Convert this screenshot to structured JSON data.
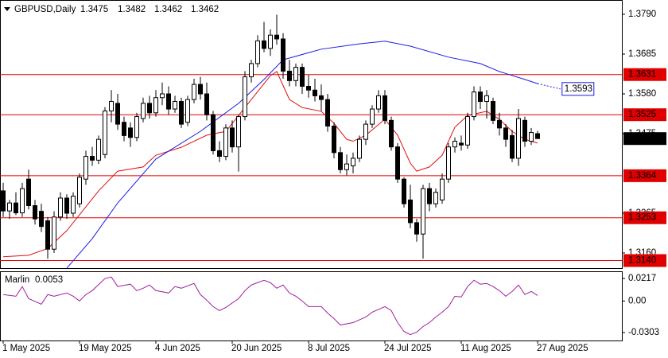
{
  "chart_data": {
    "type": "candlestick",
    "symbol": "GBPUSD,Daily",
    "categories": [
      "1 May 2025",
      null,
      null,
      null,
      null,
      null,
      null,
      null,
      null,
      null,
      null,
      null,
      "19 May 2025",
      null,
      null,
      null,
      null,
      null,
      null,
      null,
      null,
      null,
      null,
      null,
      "4 Jun 2025",
      null,
      null,
      null,
      null,
      null,
      null,
      null,
      null,
      null,
      null,
      null,
      "20 Jun 2025",
      null,
      null,
      null,
      null,
      null,
      null,
      null,
      null,
      null,
      null,
      null,
      "8 Jul 2025",
      null,
      null,
      null,
      null,
      null,
      null,
      null,
      null,
      null,
      null,
      null,
      "24 Jul 2025",
      null,
      null,
      null,
      null,
      null,
      null,
      null,
      null,
      null,
      null,
      null,
      "11 Aug 2025",
      null,
      null,
      null,
      null,
      null,
      null,
      null,
      null,
      null,
      null,
      null,
      "27 Aug 2025"
    ],
    "open": [
      1.3324,
      1.3271,
      1.3292,
      1.3266,
      1.3355,
      1.3285,
      1.327,
      1.3245,
      1.317,
      1.3255,
      1.3305,
      1.3265,
      1.329,
      1.3355,
      1.3415,
      1.3405,
      1.342,
      1.3535,
      1.3555,
      1.3505,
      1.349,
      1.3465,
      1.3515,
      1.3555,
      1.353,
      1.357,
      1.358,
      1.354,
      1.356,
      1.3505,
      1.3565,
      1.3605,
      1.358,
      1.3525,
      1.343,
      1.3415,
      1.349,
      1.344,
      1.352,
      1.3625,
      1.366,
      1.372,
      1.37,
      1.3735,
      1.3725,
      1.364,
      1.3615,
      1.365,
      1.36,
      1.359,
      1.3575,
      1.3565,
      1.3495,
      1.3425,
      1.338,
      1.339,
      1.341,
      1.346,
      1.35,
      1.354,
      1.3575,
      1.351,
      1.344,
      1.3355,
      1.33,
      1.324,
      1.321,
      1.333,
      1.329,
      1.33,
      1.3355,
      1.344,
      1.345,
      1.3445,
      1.352,
      1.3585,
      1.356,
      1.356,
      1.351,
      1.349,
      1.347,
      1.341,
      1.351,
      1.3455,
      1.3475
    ],
    "high": [
      1.3345,
      1.33,
      1.332,
      1.3345,
      1.338,
      1.33,
      1.329,
      1.3255,
      1.327,
      1.332,
      1.3315,
      1.332,
      1.337,
      1.343,
      1.344,
      1.347,
      1.3545,
      1.359,
      1.358,
      1.352,
      1.3505,
      1.353,
      1.357,
      1.3575,
      1.359,
      1.361,
      1.36,
      1.3575,
      1.357,
      1.3575,
      1.362,
      1.3625,
      1.361,
      1.3535,
      1.3455,
      1.35,
      1.351,
      1.3525,
      1.364,
      1.367,
      1.3735,
      1.377,
      1.375,
      1.3789,
      1.374,
      1.367,
      1.366,
      1.366,
      1.363,
      1.362,
      1.3605,
      1.358,
      1.3505,
      1.344,
      1.342,
      1.3425,
      1.347,
      1.351,
      1.355,
      1.359,
      1.359,
      1.352,
      1.345,
      1.336,
      1.334,
      1.325,
      1.334,
      1.3345,
      1.333,
      1.337,
      1.345,
      1.3465,
      1.347,
      1.353,
      1.36,
      1.36,
      1.359,
      1.357,
      1.353,
      1.35,
      1.3485,
      1.354,
      1.352,
      1.349,
      1.3482
    ],
    "low": [
      1.3255,
      1.325,
      1.326,
      1.3255,
      1.3275,
      1.3235,
      1.3215,
      1.3145,
      1.316,
      1.3245,
      1.325,
      1.3255,
      1.328,
      1.334,
      1.339,
      1.3395,
      1.341,
      1.3505,
      1.3485,
      1.3455,
      1.344,
      1.3455,
      1.3505,
      1.3515,
      1.352,
      1.355,
      1.3525,
      1.353,
      1.349,
      1.3495,
      1.3555,
      1.3565,
      1.351,
      1.342,
      1.34,
      1.3405,
      1.3425,
      1.3375,
      1.351,
      1.361,
      1.365,
      1.369,
      1.368,
      1.371,
      1.362,
      1.36,
      1.36,
      1.358,
      1.357,
      1.356,
      1.3535,
      1.348,
      1.341,
      1.337,
      1.3365,
      1.337,
      1.34,
      1.3445,
      1.349,
      1.353,
      1.35,
      1.343,
      1.3345,
      1.328,
      1.3225,
      1.319,
      1.3145,
      1.327,
      1.328,
      1.329,
      1.3345,
      1.3425,
      1.343,
      1.3435,
      1.351,
      1.354,
      1.3515,
      1.35,
      1.347,
      1.344,
      1.34,
      1.339,
      1.344,
      1.3445,
      1.3462
    ],
    "close": [
      1.3271,
      1.3292,
      1.3266,
      1.333,
      1.3285,
      1.325,
      1.323,
      1.317,
      1.3255,
      1.3305,
      1.3265,
      1.331,
      1.336,
      1.3415,
      1.3405,
      1.346,
      1.3535,
      1.356,
      1.35,
      1.347,
      1.3465,
      1.352,
      1.3555,
      1.353,
      1.357,
      1.358,
      1.354,
      1.356,
      1.35,
      1.3565,
      1.3605,
      1.358,
      1.3525,
      1.343,
      1.3415,
      1.349,
      1.344,
      1.352,
      1.3625,
      1.366,
      1.372,
      1.37,
      1.3735,
      1.3725,
      1.364,
      1.3615,
      1.365,
      1.36,
      1.359,
      1.3575,
      1.3565,
      1.3495,
      1.3425,
      1.338,
      1.3395,
      1.341,
      1.346,
      1.35,
      1.354,
      1.3575,
      1.351,
      1.344,
      1.3355,
      1.329,
      1.324,
      1.321,
      1.333,
      1.329,
      1.332,
      1.3355,
      1.344,
      1.3455,
      1.3445,
      1.352,
      1.3585,
      1.356,
      1.3575,
      1.351,
      1.349,
      1.346,
      1.341,
      1.3515,
      1.3455,
      1.3478,
      1.3462
    ],
    "bull_color": "#ffffff",
    "bear_color": "#000000",
    "ylim": [
      1.31201,
      1.38278
    ],
    "yticks": [
      {
        "value": 1.379,
        "label": "1.3790"
      },
      1.3685,
      {
        "value": 1.358,
        "label": "1.3580"
      },
      1.3475,
      1.3265,
      {
        "value": 1.316,
        "label": "1.3160"
      }
    ],
    "grid": false,
    "level_color": "#e00000",
    "levels": [
      1.3631,
      1.3525,
      1.3364,
      1.3253,
      {
        "value": 1.314,
        "label": "1.3140"
      }
    ],
    "moving_averages": [
      {
        "color": "#e01010",
        "x": [
          0,
          4,
          7,
          10,
          12,
          15,
          18,
          22,
          24,
          28,
          32,
          35,
          37,
          40,
          42,
          43,
          45,
          47,
          50,
          52,
          54,
          55,
          57,
          60,
          62,
          64,
          65,
          67,
          69,
          71,
          73,
          76,
          78,
          80,
          82,
          84
        ],
        "values": [
          1.315,
          1.3154,
          1.3172,
          1.3219,
          1.3261,
          1.3324,
          1.3376,
          1.3387,
          1.3418,
          1.3439,
          1.3471,
          1.3481,
          1.3523,
          1.3586,
          1.3628,
          1.3639,
          1.3565,
          1.3544,
          1.3534,
          1.3502,
          1.346,
          1.3455,
          1.3471,
          1.3513,
          1.3471,
          1.3397,
          1.3376,
          1.3387,
          1.3418,
          1.3492,
          1.3523,
          1.3534,
          1.3513,
          1.3481,
          1.346,
          1.345
        ]
      },
      {
        "color": "#1a1ae6",
        "x": [
          10,
          14,
          18,
          24,
          31,
          37,
          41,
          44,
          50,
          56,
          60,
          64,
          70,
          75,
          78,
          82,
          84
        ],
        "values": [
          1.312,
          1.3198,
          1.3292,
          1.3408,
          1.3481,
          1.3555,
          1.3618,
          1.367,
          1.3698,
          1.3712,
          1.3719,
          1.3706,
          1.3677,
          1.366,
          1.3639,
          1.3618,
          1.3607
        ],
        "projection": {
          "x": 87.6,
          "value": 1.3593
        }
      }
    ],
    "indicator": {
      "name": "Marlin",
      "color": "#a020a0",
      "ylim": [
        -0.038,
        0.0286
      ],
      "yticks": [
        0.0217,
        {
          "value": 0,
          "label": "0.00"
        },
        -0.0303
      ],
      "x": [
        0,
        2,
        3,
        4,
        6,
        7,
        8,
        10,
        11,
        12,
        13,
        14,
        16,
        17,
        18,
        20,
        21,
        22,
        23,
        24,
        26,
        27,
        28,
        30,
        31,
        32,
        33,
        34,
        35,
        37,
        38,
        39,
        41,
        42,
        43,
        44,
        45,
        46,
        47,
        48,
        50,
        51,
        52,
        53,
        55,
        57,
        58,
        60,
        61,
        62,
        63,
        64,
        65,
        66,
        67,
        68,
        69,
        70,
        71,
        72,
        73,
        74,
        75,
        76,
        77,
        78,
        79,
        80,
        81,
        82,
        83,
        84
      ],
      "values": [
        0.0062,
        0.0046,
        0.0139,
        0.0023,
        -0.0031,
        0.0062,
        0.0046,
        0.0077,
        0.0046,
        0,
        0.0062,
        0.01,
        0.0216,
        0.0231,
        0.0139,
        0.0162,
        0.01,
        0.0123,
        0.0154,
        0.01,
        0.0077,
        0.0139,
        0.0123,
        0.0169,
        0.0062,
        0.0008,
        -0.0054,
        -0.0092,
        -0.0062,
        0.0023,
        0.01,
        0.0154,
        0.02,
        0.0177,
        0.0123,
        0.0154,
        0.0077,
        0.0046,
        0,
        -0.0054,
        -0.0054,
        -0.0116,
        -0.0169,
        -0.0231,
        -0.0208,
        -0.0154,
        -0.0108,
        -0.0054,
        -0.0092,
        -0.0208,
        -0.0293,
        -0.0323,
        -0.03,
        -0.0246,
        -0.0208,
        -0.0154,
        -0.0108,
        -0.0054,
        0.0046,
        0.0039,
        0.0139,
        0.02,
        0.0162,
        0.0169,
        0.0139,
        0.01,
        0.0046,
        0.0092,
        0.0154,
        0.0062,
        0.0092,
        0.0053
      ]
    }
  }
}
